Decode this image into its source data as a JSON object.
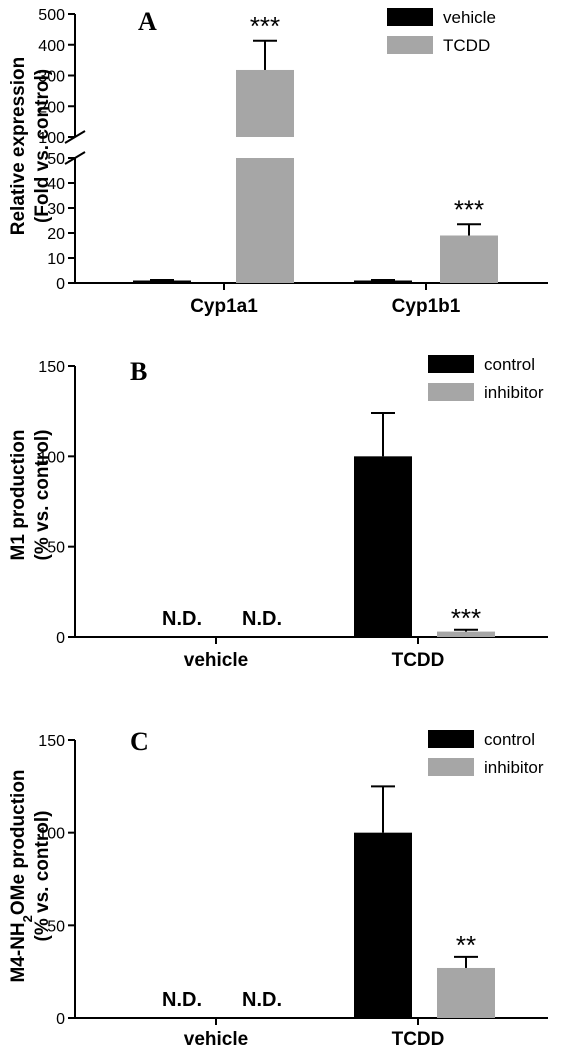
{
  "colors": {
    "black": "#000000",
    "gray": "#a6a6a6",
    "axis": "#000000"
  },
  "chart_data": [
    {
      "panel": "A",
      "type": "bar",
      "ylabel_lines": [
        "Relative expression",
        "(Fold vs. control)"
      ],
      "axis_break": true,
      "ylim_lower": [
        0,
        50
      ],
      "ylim_upper": [
        100,
        500
      ],
      "yticks_lower": [
        0,
        10,
        20,
        30,
        40,
        50
      ],
      "yticks_upper": [
        100,
        200,
        300,
        400,
        500
      ],
      "categories": [
        "Cyp1a1",
        "Cyp1b1"
      ],
      "series": [
        {
          "name": "vehicle",
          "color": "#000000",
          "values": [
            1,
            1
          ],
          "errors": [
            0.2,
            0.2
          ]
        },
        {
          "name": "TCDD",
          "color": "#a6a6a6",
          "values": [
            318,
            19
          ],
          "errors": [
            95,
            4.5
          ]
        }
      ],
      "annotations": [
        {
          "category": 0,
          "series": 1,
          "text": "***"
        },
        {
          "category": 1,
          "series": 1,
          "text": "***"
        }
      ],
      "legend": "top-right"
    },
    {
      "panel": "B",
      "type": "bar",
      "ylabel_lines": [
        "M1 production",
        "(% vs. control)"
      ],
      "ylim": [
        0,
        150
      ],
      "yticks": [
        0,
        50,
        100,
        150
      ],
      "categories": [
        "vehicle",
        "TCDD"
      ],
      "series": [
        {
          "name": "control",
          "color": "#000000",
          "values": [
            null,
            100
          ],
          "errors": [
            null,
            24
          ]
        },
        {
          "name": "inhibitor",
          "color": "#a6a6a6",
          "values": [
            null,
            3
          ],
          "errors": [
            null,
            1
          ]
        }
      ],
      "nd_labels": [
        {
          "category": 0,
          "series": 0,
          "text": "N.D."
        },
        {
          "category": 0,
          "series": 1,
          "text": "N.D."
        }
      ],
      "annotations": [
        {
          "category": 1,
          "series": 1,
          "text": "***"
        }
      ],
      "legend": "top-right"
    },
    {
      "panel": "C",
      "type": "bar",
      "ylabel_lines": [
        "M4-NH2OMe production",
        "(% vs. control)"
      ],
      "ylim": [
        0,
        150
      ],
      "yticks": [
        0,
        50,
        100,
        150
      ],
      "categories": [
        "vehicle",
        "TCDD"
      ],
      "series": [
        {
          "name": "control",
          "color": "#000000",
          "values": [
            null,
            100
          ],
          "errors": [
            null,
            25
          ]
        },
        {
          "name": "inhibitor",
          "color": "#a6a6a6",
          "values": [
            null,
            27
          ],
          "errors": [
            null,
            6
          ]
        }
      ],
      "nd_labels": [
        {
          "category": 0,
          "series": 0,
          "text": "N.D."
        },
        {
          "category": 0,
          "series": 1,
          "text": "N.D."
        }
      ],
      "annotations": [
        {
          "category": 1,
          "series": 1,
          "text": "**"
        }
      ],
      "legend": "top-right"
    }
  ]
}
